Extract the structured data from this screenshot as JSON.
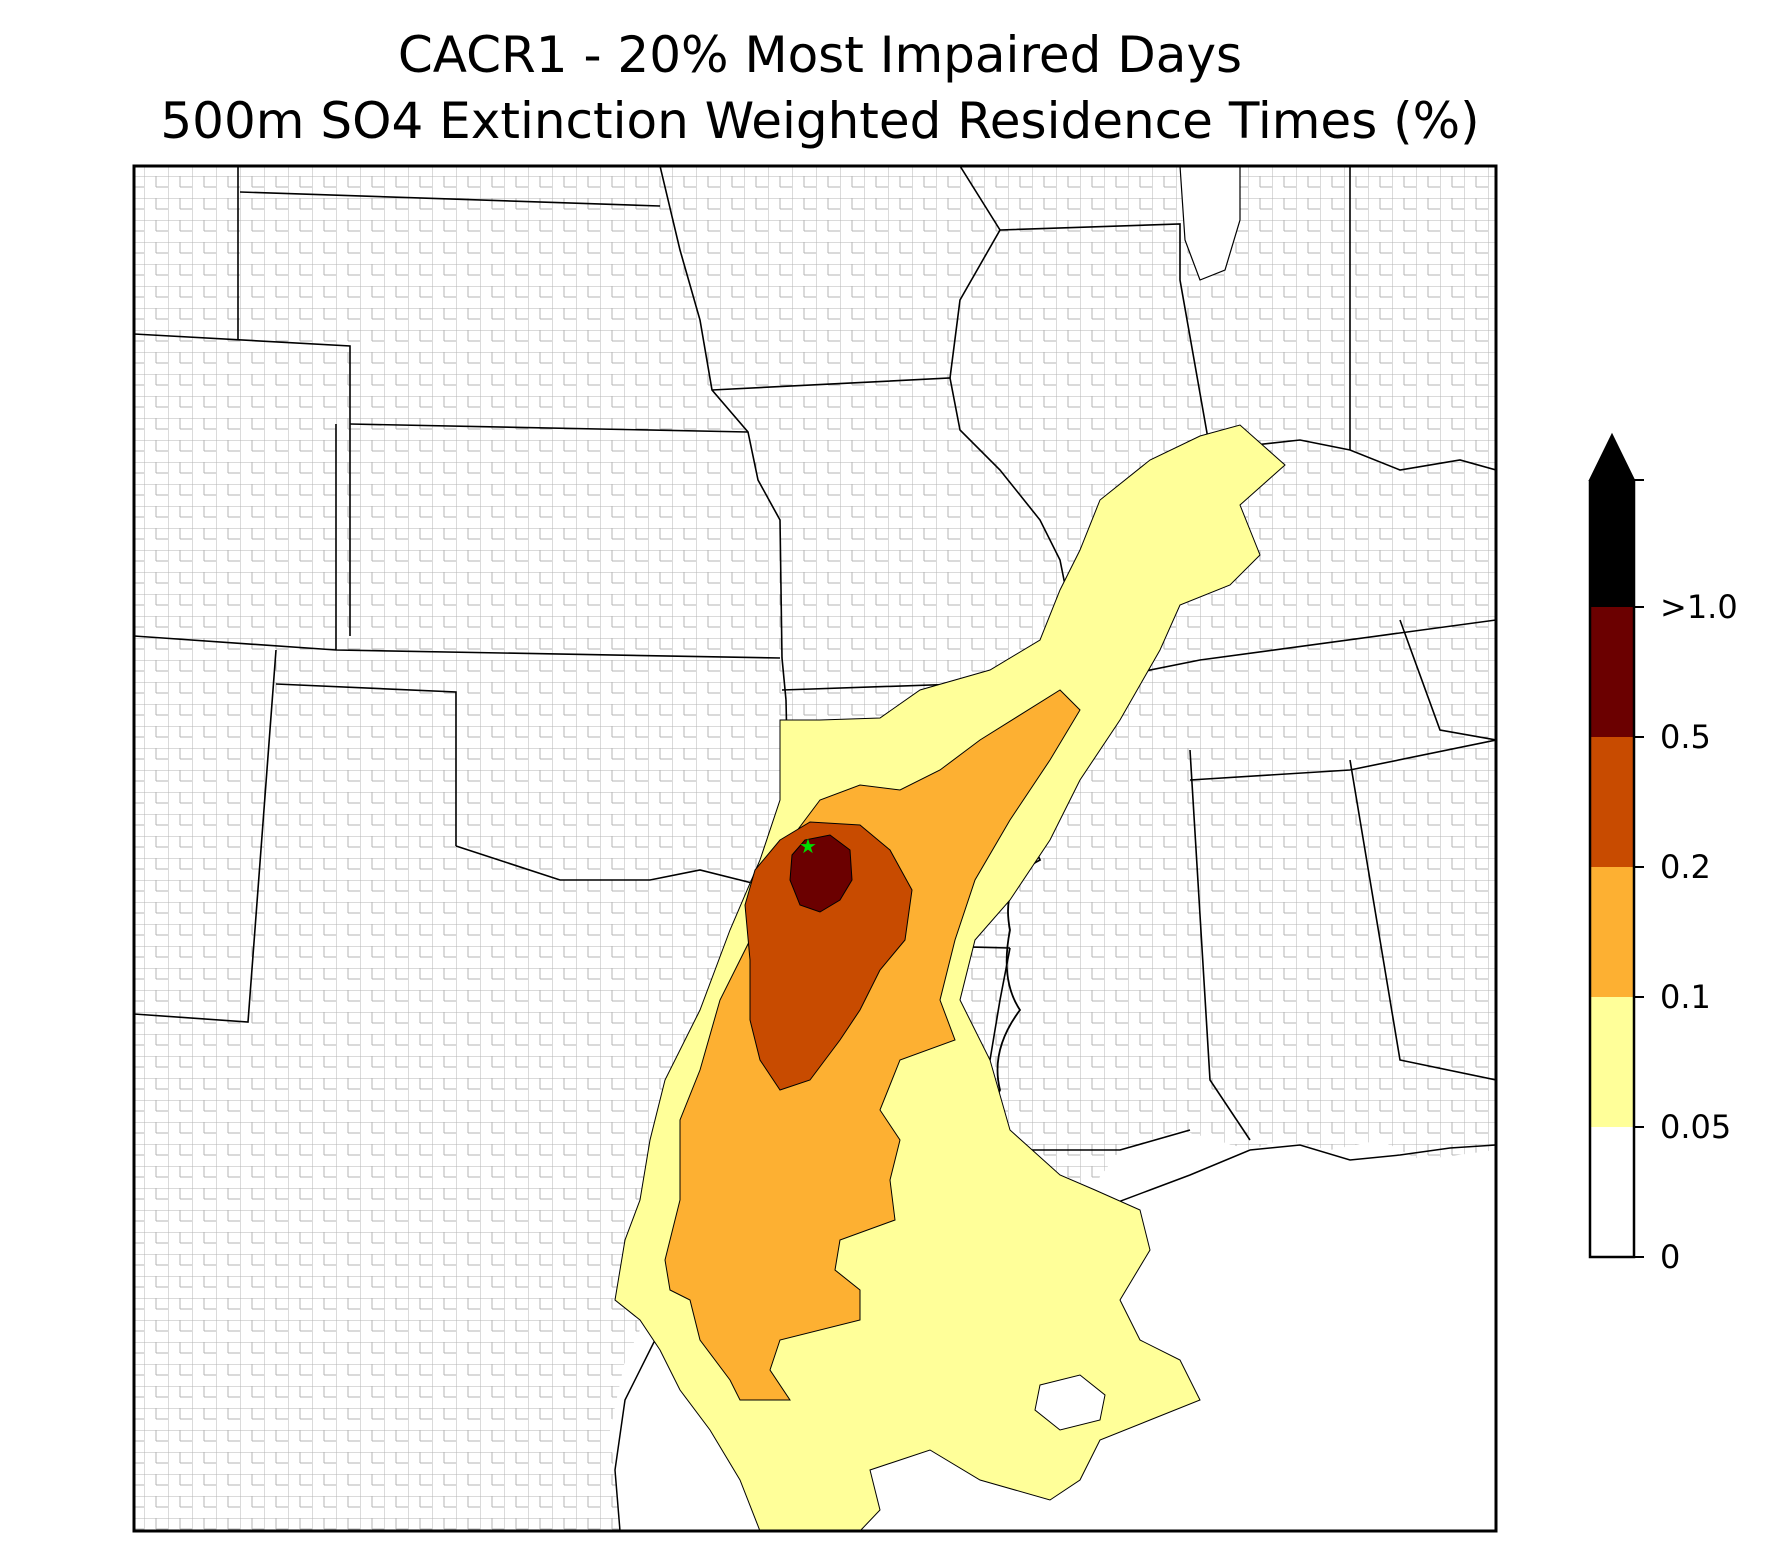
{
  "title": {
    "line1": "CACR1 - 20% Most Impaired Days",
    "line2": "500m SO4 Extinction Weighted Residence Times (%)"
  },
  "colorbar": {
    "levels": [
      {
        "label": "0",
        "color": "#ffffff"
      },
      {
        "label": "0.05",
        "color": "#ffff99"
      },
      {
        "label": "0.1",
        "color": "#fdb032"
      },
      {
        "label": "0.2",
        "color": "#c84b00"
      },
      {
        "label": "0.5",
        "color": "#6b0000"
      },
      {
        "label": ">1.0",
        "color": "#000000"
      }
    ],
    "extend": "max"
  },
  "map": {
    "site_marker": "green-star-icon",
    "site_color": "#00dd00"
  }
}
